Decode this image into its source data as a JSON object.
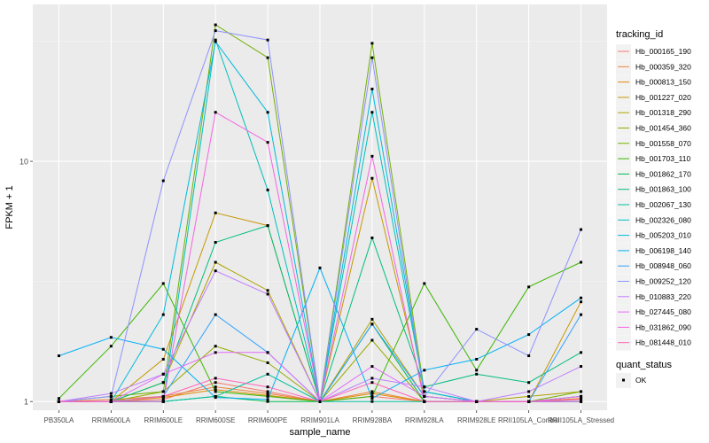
{
  "chart_data": {
    "type": "line",
    "xlabel": "sample_name",
    "ylabel": "FPKM + 1",
    "y_scale": "log",
    "ylim": [
      0.92,
      45
    ],
    "y_ticks": [
      1,
      10
    ],
    "y_tick_labels": [
      "1",
      "10"
    ],
    "grid": true,
    "legend_position": "right",
    "categories": [
      "PB350LA",
      "RRIM600LA",
      "RRIM600LE",
      "RRIM600SE",
      "RRIM600PE",
      "RRIM901LA",
      "RRIM928BA",
      "RRIM928LA",
      "RRIM928LE",
      "RRII105LA_Control",
      "RRII105LA_Stressed"
    ],
    "legend_title": "tracking_id",
    "legend2_title": "quant_status",
    "legend2_items": [
      {
        "label": "OK",
        "color": "#000000"
      }
    ],
    "series": [
      {
        "name": "Hb_000165_190",
        "color": "#F8766D",
        "values": [
          1.0,
          1.0,
          1.02,
          1.2,
          1.1,
          1.0,
          1.05,
          1.0,
          1.0,
          1.0,
          1.02
        ]
      },
      {
        "name": "Hb_000359_320",
        "color": "#EC8239",
        "values": [
          1.0,
          1.02,
          1.05,
          1.15,
          1.08,
          1.0,
          1.1,
          1.0,
          1.0,
          1.0,
          1.03
        ]
      },
      {
        "name": "Hb_000813_150",
        "color": "#DB8E00",
        "values": [
          1.0,
          1.0,
          1.04,
          1.12,
          1.06,
          1.0,
          1.08,
          1.0,
          1.0,
          1.0,
          1.05
        ]
      },
      {
        "name": "Hb_001227_020",
        "color": "#C79800",
        "values": [
          1.0,
          1.0,
          1.5,
          6.1,
          5.4,
          1.0,
          8.5,
          1.05,
          1.0,
          1.0,
          2.6
        ]
      },
      {
        "name": "Hb_001318_290",
        "color": "#AFA100",
        "values": [
          1.0,
          1.0,
          1.2,
          3.8,
          2.9,
          1.0,
          2.2,
          1.05,
          1.0,
          1.05,
          1.1
        ]
      },
      {
        "name": "Hb_001454_360",
        "color": "#96A900",
        "values": [
          1.0,
          1.0,
          1.1,
          1.7,
          1.45,
          1.0,
          1.8,
          1.0,
          1.0,
          1.0,
          1.05
        ]
      },
      {
        "name": "Hb_001558_070",
        "color": "#72B000",
        "values": [
          1.0,
          1.05,
          1.1,
          37.0,
          27.0,
          1.0,
          31.0,
          1.1,
          1.0,
          1.0,
          1.1
        ]
      },
      {
        "name": "Hb_001703_110",
        "color": "#3BB700",
        "values": [
          1.03,
          1.7,
          3.1,
          1.1,
          1.05,
          1.0,
          1.05,
          3.1,
          1.35,
          3.0,
          3.8
        ]
      },
      {
        "name": "Hb_001862_170",
        "color": "#00BB4B",
        "values": [
          1.0,
          1.0,
          1.0,
          1.05,
          1.0,
          1.0,
          2.1,
          1.0,
          1.0,
          1.0,
          1.0
        ]
      },
      {
        "name": "Hb_001863_100",
        "color": "#00BD7C",
        "values": [
          1.0,
          1.0,
          1.2,
          4.6,
          5.4,
          1.0,
          4.8,
          1.15,
          1.3,
          1.2,
          1.6
        ]
      },
      {
        "name": "Hb_002067_130",
        "color": "#00BFA0",
        "values": [
          1.0,
          1.0,
          1.0,
          1.05,
          1.3,
          1.0,
          1.0,
          1.0,
          1.0,
          1.0,
          1.0
        ]
      },
      {
        "name": "Hb_002326_080",
        "color": "#00BFBF",
        "values": [
          1.0,
          1.0,
          1.0,
          32.0,
          7.6,
          1.0,
          16.0,
          1.1,
          1.0,
          1.0,
          1.0
        ]
      },
      {
        "name": "Hb_005203_010",
        "color": "#00BADB",
        "values": [
          1.0,
          1.0,
          2.3,
          31.5,
          16.0,
          1.0,
          20.0,
          1.1,
          1.0,
          1.0,
          1.05
        ]
      },
      {
        "name": "Hb_006198_140",
        "color": "#00B0F6",
        "values": [
          1.55,
          1.85,
          1.65,
          1.04,
          1.02,
          3.6,
          1.03,
          1.35,
          1.5,
          1.9,
          2.7
        ]
      },
      {
        "name": "Hb_008948_060",
        "color": "#31A2FF",
        "values": [
          1.0,
          1.0,
          1.05,
          2.3,
          1.6,
          1.0,
          2.1,
          1.05,
          1.0,
          1.0,
          2.3
        ]
      },
      {
        "name": "Hb_009252_120",
        "color": "#8F91FF",
        "values": [
          1.0,
          1.05,
          8.3,
          35.0,
          32.0,
          1.0,
          27.0,
          1.05,
          2.0,
          1.55,
          5.2
        ]
      },
      {
        "name": "Hb_010883_220",
        "color": "#C07EFF",
        "values": [
          1.0,
          1.08,
          1.3,
          3.5,
          2.8,
          1.0,
          1.25,
          1.15,
          1.0,
          1.1,
          1.4
        ]
      },
      {
        "name": "Hb_027445_080",
        "color": "#E26DF8",
        "values": [
          1.0,
          1.0,
          1.3,
          1.6,
          1.6,
          1.0,
          1.4,
          1.05,
          1.0,
          1.0,
          1.05
        ]
      },
      {
        "name": "Hb_031862_090",
        "color": "#F564E3",
        "values": [
          1.0,
          1.0,
          1.0,
          16.0,
          12.0,
          1.0,
          10.5,
          1.0,
          1.0,
          1.0,
          1.0
        ]
      },
      {
        "name": "Hb_081448_010",
        "color": "#FF63B8",
        "values": [
          1.0,
          1.0,
          1.05,
          1.25,
          1.15,
          1.0,
          1.2,
          1.0,
          1.0,
          1.0,
          1.02
        ]
      }
    ]
  }
}
